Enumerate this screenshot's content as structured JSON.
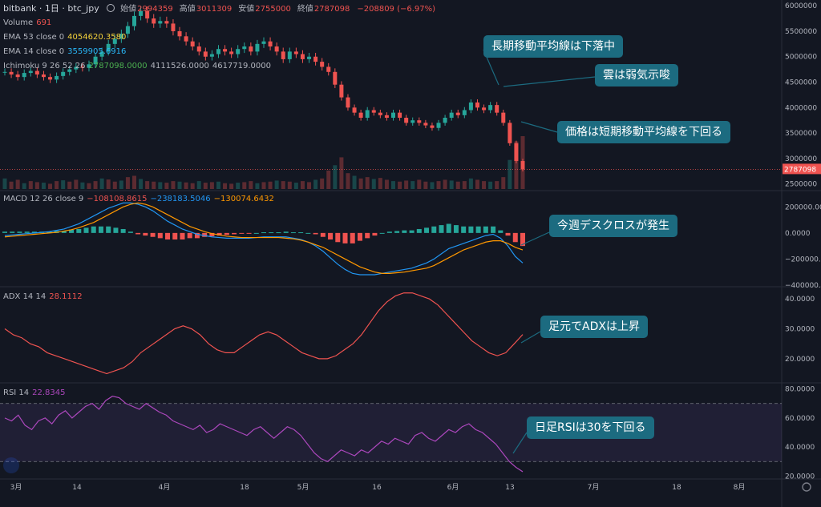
{
  "header": {
    "symbol": "bitbank · 1日 · btc_jpy",
    "ohlc": [
      {
        "label": "始値",
        "value": "2994359"
      },
      {
        "label": "高値",
        "value": "3011309"
      },
      {
        "label": "安値",
        "value": "2755000"
      },
      {
        "label": "終値",
        "value": "2787098"
      },
      {
        "label": "",
        "value": "−208809 (−6.97%)"
      }
    ]
  },
  "legends": [
    {
      "label": "Volume",
      "values": [
        "691"
      ],
      "colors": [
        "#ef5350"
      ]
    },
    {
      "label": "EMA 53 close 0",
      "values": [
        "4054620.3580"
      ],
      "colors": [
        "#f5d33b"
      ]
    },
    {
      "label": "EMA 14 close 0",
      "values": [
        "3559905.6916"
      ],
      "colors": [
        "#29b6f6"
      ]
    },
    {
      "label": "Ichimoku 9 26 52 26",
      "values": [
        "2787098.0000",
        "4111526.0000",
        "4617719.0000"
      ],
      "colors": [
        "#4caf50",
        "#b2b5be",
        "#b2b5be"
      ]
    },
    {
      "label": "MACD 12 26 close 9",
      "values": [
        "−108108.8615",
        "−238183.5046",
        "−130074.6432"
      ],
      "colors": [
        "#ef5350",
        "#2196f3",
        "#ff9800"
      ]
    },
    {
      "label": "ADX 14 14",
      "values": [
        "28.1112"
      ],
      "colors": [
        "#ef5350"
      ]
    },
    {
      "label": "RSI 14",
      "values": [
        "22.8345"
      ],
      "colors": [
        "#ab47bc"
      ]
    }
  ],
  "annotations": {
    "a1": "長期移動平均線は下落中",
    "a2": "雲は弱気示唆",
    "a3": "価格は短期移動平均線を下回る",
    "a4": "今週デスクロスが発生",
    "a5": "足元でADXは上昇",
    "a6": "日足RSIは30を下回る"
  },
  "colors": {
    "up": "#26a69a",
    "down": "#ef5350",
    "bg": "#131722",
    "accent": "#1c6b80"
  },
  "chart_data": [
    {
      "type": "candlestick",
      "pane": "price",
      "title": "bitbank 1日 btc_jpy",
      "yticks": [
        2500000,
        3000000,
        3500000,
        4000000,
        4500000,
        5000000,
        5500000,
        6000000
      ],
      "ylim": [
        2400000,
        6050000
      ],
      "last_price": "2787098",
      "x_ticks": [
        "3月",
        "14",
        "4月",
        "18",
        "5月",
        "16",
        "6月",
        "13",
        "7月",
        "18",
        "8月"
      ],
      "series": [
        {
          "name": "Close",
          "values": [
            4700000,
            4650000,
            4600000,
            4680000,
            4720000,
            4650000,
            4600000,
            4550000,
            4620000,
            4700000,
            4750000,
            4800000,
            4780000,
            4850000,
            5000000,
            5100000,
            5250000,
            5350000,
            5450000,
            5600000,
            5800000,
            5900000,
            5750000,
            5650000,
            5700000,
            5650000,
            5500000,
            5400000,
            5300000,
            5200000,
            5100000,
            5000000,
            5050000,
            5150000,
            5100000,
            5050000,
            5150000,
            5200000,
            5100000,
            5250000,
            5300000,
            5200000,
            5100000,
            4950000,
            5100000,
            5050000,
            4950000,
            5000000,
            4900000,
            4800000,
            4700000,
            4450000,
            4200000,
            4000000,
            3900000,
            3800000,
            3950000,
            3900000,
            3850000,
            3800000,
            3900000,
            3800000,
            3700000,
            3750000,
            3700000,
            3650000,
            3600000,
            3700000,
            3800000,
            3900000,
            3850000,
            3950000,
            4100000,
            4000000,
            3950000,
            4050000,
            3900000,
            3700000,
            3300000,
            2950000,
            2787098
          ]
        }
      ]
    },
    {
      "type": "bar",
      "pane": "volume",
      "values": [
        40,
        28,
        35,
        22,
        30,
        26,
        24,
        20,
        30,
        33,
        28,
        35,
        25,
        22,
        30,
        40,
        36,
        28,
        32,
        45,
        50,
        38,
        30,
        28,
        26,
        24,
        30,
        28,
        25,
        22,
        30,
        24,
        26,
        28,
        22,
        20,
        24,
        26,
        30,
        22,
        26,
        28,
        32,
        30,
        28,
        24,
        30,
        26,
        35,
        40,
        70,
        90,
        120,
        60,
        50,
        40,
        45,
        38,
        42,
        35,
        30,
        28,
        32,
        30,
        35,
        28,
        26,
        30,
        35,
        32,
        28,
        30,
        40,
        35,
        30,
        28,
        30,
        45,
        110,
        180,
        200
      ]
    },
    {
      "type": "line",
      "pane": "MACD",
      "yticks": [
        200000,
        0,
        -200000,
        -400000
      ],
      "ylim": [
        -400000,
        300000
      ],
      "series": [
        {
          "name": "MACD",
          "values": [
            -20000,
            -15000,
            -10000,
            -5000,
            0,
            5000,
            10000,
            20000,
            30000,
            50000,
            70000,
            100000,
            130000,
            160000,
            190000,
            210000,
            230000,
            230000,
            220000,
            200000,
            170000,
            130000,
            90000,
            60000,
            30000,
            10000,
            -10000,
            -20000,
            -30000,
            -35000,
            -40000,
            -40000,
            -40000,
            -40000,
            -35000,
            -30000,
            -30000,
            -30000,
            -30000,
            -40000,
            -50000,
            -70000,
            -100000,
            -140000,
            -190000,
            -240000,
            -280000,
            -310000,
            -320000,
            -320000,
            -320000,
            -310000,
            -300000,
            -290000,
            -280000,
            -270000,
            -250000,
            -230000,
            -200000,
            -160000,
            -120000,
            -100000,
            -80000,
            -60000,
            -40000,
            -20000,
            -10000,
            -40000,
            -100000,
            -180000,
            -230000
          ]
        },
        {
          "name": "Signal",
          "values": [
            -30000,
            -25000,
            -20000,
            -15000,
            -10000,
            -5000,
            0,
            5000,
            15000,
            25000,
            40000,
            60000,
            80000,
            110000,
            140000,
            170000,
            200000,
            220000,
            230000,
            220000,
            200000,
            170000,
            140000,
            110000,
            80000,
            50000,
            30000,
            10000,
            -5000,
            -15000,
            -25000,
            -30000,
            -35000,
            -35000,
            -35000,
            -35000,
            -35000,
            -35000,
            -40000,
            -45000,
            -55000,
            -70000,
            -90000,
            -110000,
            -140000,
            -170000,
            -200000,
            -230000,
            -260000,
            -280000,
            -300000,
            -310000,
            -310000,
            -305000,
            -300000,
            -290000,
            -280000,
            -270000,
            -250000,
            -220000,
            -190000,
            -160000,
            -130000,
            -110000,
            -90000,
            -70000,
            -60000,
            -60000,
            -80000,
            -110000,
            -130000
          ]
        },
        {
          "name": "Histogram",
          "values": [
            10000,
            10000,
            10000,
            10000,
            10000,
            10000,
            10000,
            15000,
            15000,
            25000,
            30000,
            40000,
            50000,
            50000,
            50000,
            40000,
            30000,
            10000,
            -10000,
            -20000,
            -30000,
            -40000,
            -50000,
            -50000,
            -50000,
            -40000,
            -40000,
            -30000,
            -25000,
            -20000,
            -15000,
            -10000,
            -5000,
            -5000,
            0,
            5000,
            5000,
            5000,
            10000,
            5000,
            5000,
            0,
            -10000,
            -30000,
            -50000,
            -70000,
            -80000,
            -80000,
            -60000,
            -40000,
            -20000,
            0,
            10000,
            15000,
            20000,
            20000,
            30000,
            40000,
            50000,
            60000,
            70000,
            60000,
            50000,
            50000,
            50000,
            50000,
            50000,
            20000,
            -20000,
            -70000,
            -100000
          ]
        }
      ]
    },
    {
      "type": "line",
      "pane": "ADX",
      "yticks": [
        40,
        30,
        20
      ],
      "ylim": [
        13,
        43
      ],
      "series": [
        {
          "name": "ADX",
          "values": [
            30,
            28,
            27,
            25,
            24,
            22,
            21,
            20,
            19,
            18,
            17,
            16,
            15,
            16,
            17,
            19,
            22,
            24,
            26,
            28,
            30,
            31,
            30,
            28,
            25,
            23,
            22,
            22,
            24,
            26,
            28,
            29,
            28,
            26,
            24,
            22,
            21,
            20,
            20,
            21,
            23,
            25,
            28,
            32,
            36,
            39,
            41,
            42,
            42,
            41,
            40,
            38,
            35,
            32,
            29,
            26,
            24,
            22,
            21,
            22,
            25,
            28.1
          ]
        }
      ]
    },
    {
      "type": "line",
      "pane": "RSI",
      "yticks": [
        80,
        60,
        40,
        20
      ],
      "ylim": [
        18,
        82
      ],
      "bands": [
        30,
        70
      ],
      "series": [
        {
          "name": "RSI",
          "values": [
            60,
            58,
            62,
            55,
            52,
            58,
            60,
            56,
            62,
            65,
            60,
            64,
            68,
            70,
            66,
            72,
            75,
            74,
            70,
            68,
            66,
            70,
            67,
            64,
            62,
            58,
            56,
            54,
            52,
            55,
            50,
            52,
            56,
            54,
            52,
            50,
            48,
            52,
            54,
            50,
            46,
            50,
            54,
            52,
            48,
            42,
            36,
            32,
            30,
            34,
            38,
            36,
            34,
            38,
            36,
            40,
            44,
            42,
            46,
            44,
            42,
            48,
            50,
            46,
            44,
            48,
            52,
            50,
            54,
            56,
            52,
            50,
            46,
            42,
            36,
            30,
            26,
            23
          ]
        }
      ]
    }
  ]
}
